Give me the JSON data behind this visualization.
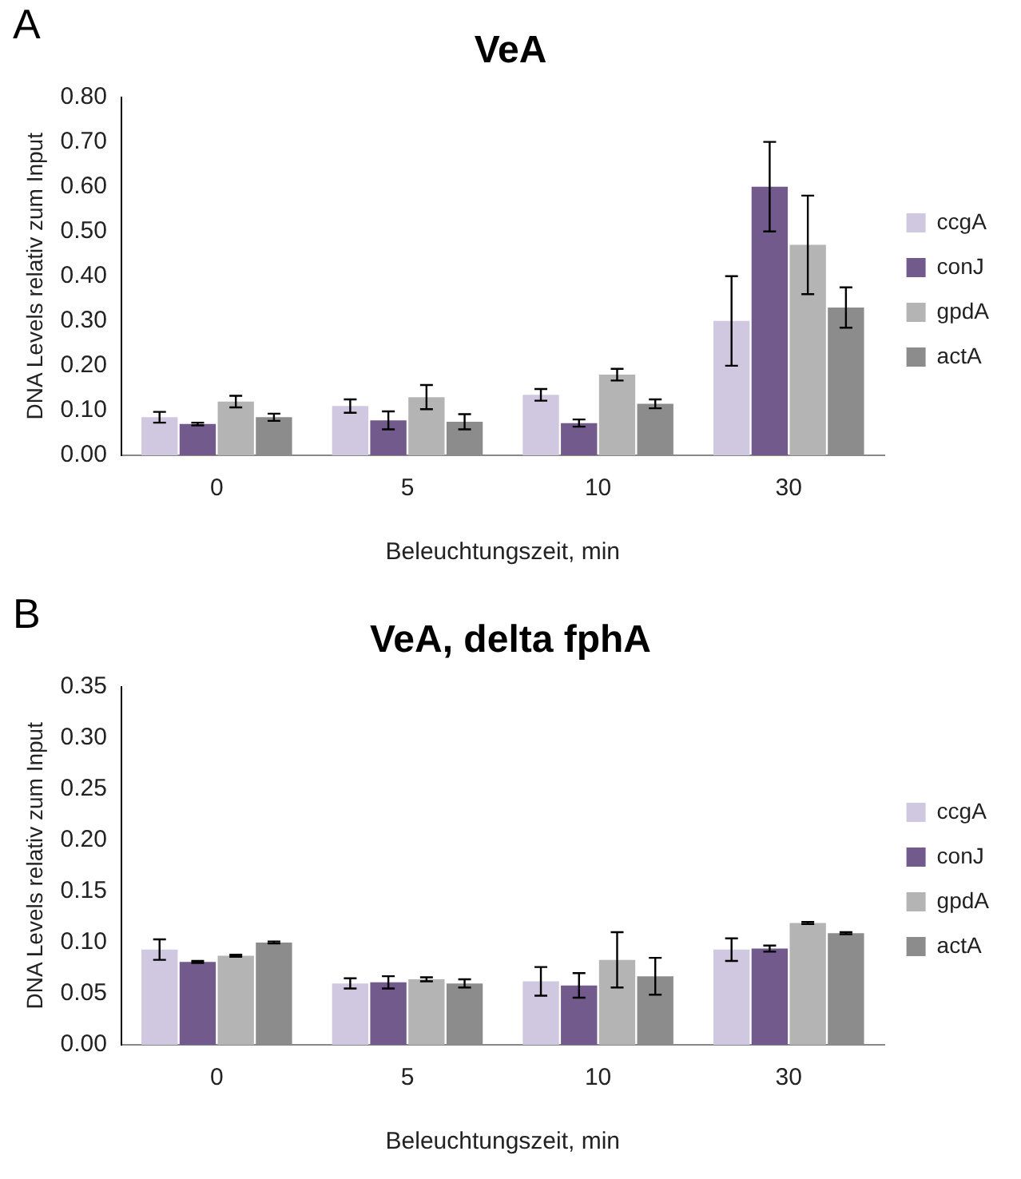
{
  "chart_data": [
    {
      "type": "bar",
      "title": "VeA",
      "xlabel": "Beleuchtungszeit, min",
      "ylabel": "DNA Levels relativ zum Input",
      "annotations": [
        "A"
      ],
      "categories": [
        "0",
        "5",
        "10",
        "30"
      ],
      "ylim": [
        0,
        0.8
      ],
      "yticks": [
        {
          "value": 0,
          "label": "0.00"
        },
        {
          "value": 0.1,
          "label": "0.10"
        },
        {
          "value": 0.2,
          "label": "0.20"
        },
        {
          "value": 0.3,
          "label": "0.30"
        },
        {
          "value": 0.4,
          "label": "0.40"
        },
        {
          "value": 0.5,
          "label": "0.50"
        },
        {
          "value": 0.6,
          "label": "0.60"
        },
        {
          "value": 0.7,
          "label": "0.70"
        },
        {
          "value": 0.8,
          "label": "0.80"
        }
      ],
      "grid": false,
      "legend": "right",
      "series": [
        {
          "name": "ccgA",
          "color": "#d0c8e0",
          "values": [
            0.085,
            0.11,
            0.135,
            0.3
          ],
          "errors": [
            0.012,
            0.015,
            0.013,
            0.1
          ]
        },
        {
          "name": "conJ",
          "color": "#735a8c",
          "values": [
            0.07,
            0.078,
            0.072,
            0.6
          ],
          "errors": [
            0.003,
            0.02,
            0.008,
            0.1
          ]
        },
        {
          "name": "gpdA",
          "color": "#b4b4b4",
          "values": [
            0.12,
            0.13,
            0.18,
            0.47
          ],
          "errors": [
            0.013,
            0.027,
            0.013,
            0.11
          ]
        },
        {
          "name": "actA",
          "color": "#8c8c8c",
          "values": [
            0.085,
            0.075,
            0.115,
            0.33
          ],
          "errors": [
            0.008,
            0.017,
            0.01,
            0.045
          ]
        }
      ]
    },
    {
      "type": "bar",
      "title": "VeA, delta fphA",
      "xlabel": "Beleuchtungszeit, min",
      "ylabel": "DNA Levels relativ zum Input",
      "annotations": [
        "B"
      ],
      "categories": [
        "0",
        "5",
        "10",
        "30"
      ],
      "ylim": [
        0,
        0.35
      ],
      "yticks": [
        {
          "value": 0,
          "label": "0.00"
        },
        {
          "value": 0.05,
          "label": "0.05"
        },
        {
          "value": 0.1,
          "label": "0.10"
        },
        {
          "value": 0.15,
          "label": "0.15"
        },
        {
          "value": 0.2,
          "label": "0.20"
        },
        {
          "value": 0.25,
          "label": "0.25"
        },
        {
          "value": 0.3,
          "label": "0.30"
        },
        {
          "value": 0.35,
          "label": "0.35"
        }
      ],
      "grid": false,
      "legend": "right",
      "series": [
        {
          "name": "ccgA",
          "color": "#d0c8e0",
          "values": [
            0.093,
            0.06,
            0.062,
            0.093
          ],
          "errors": [
            0.01,
            0.005,
            0.014,
            0.011
          ]
        },
        {
          "name": "conJ",
          "color": "#735a8c",
          "values": [
            0.081,
            0.061,
            0.058,
            0.094
          ],
          "errors": [
            0.001,
            0.006,
            0.012,
            0.003
          ]
        },
        {
          "name": "gpdA",
          "color": "#b4b4b4",
          "values": [
            0.087,
            0.064,
            0.083,
            0.119
          ],
          "errors": [
            0.001,
            0.002,
            0.027,
            0.001
          ]
        },
        {
          "name": "actA",
          "color": "#8c8c8c",
          "values": [
            0.1,
            0.06,
            0.067,
            0.109
          ],
          "errors": [
            0.001,
            0.004,
            0.018,
            0.001
          ]
        }
      ]
    }
  ]
}
